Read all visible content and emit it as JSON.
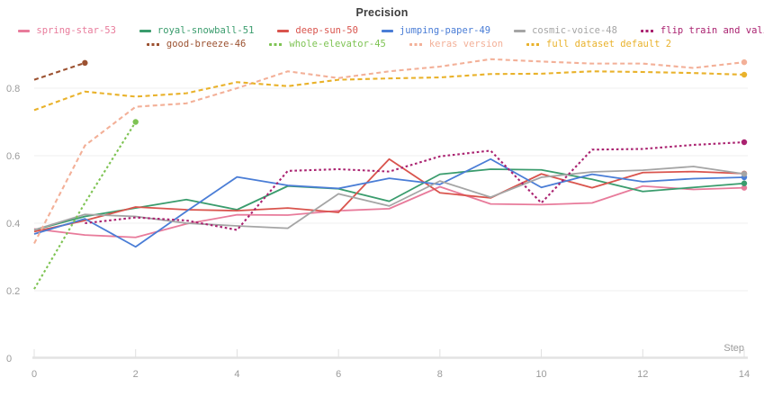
{
  "chart_data": {
    "type": "line",
    "title": "Precision",
    "xlabel": "Step",
    "xlim": [
      0,
      14
    ],
    "ylim": [
      0,
      0.9
    ],
    "x_ticks": [
      0,
      2,
      4,
      6,
      8,
      10,
      12,
      14
    ],
    "x_tick_labels": [
      "0",
      "2",
      "4",
      "6",
      "8",
      "10",
      "12",
      "14"
    ],
    "y_ticks": [
      0,
      0.2,
      0.4,
      0.6,
      0.8
    ],
    "y_tick_labels": [
      "0",
      "0.2",
      "0.4",
      "0.6",
      "0.8"
    ],
    "grid": "horizontal-only",
    "legend_position": "top",
    "axis_color": "#9b9b9b",
    "gridline_color": "#efefef",
    "series": [
      {
        "name": "spring-star-53",
        "color": "#e87b9b",
        "dash": "solid",
        "x": [
          0,
          1,
          2,
          3,
          4,
          5,
          6,
          7,
          8,
          9,
          10,
          11,
          12,
          13,
          14
        ],
        "y": [
          0.383,
          0.365,
          0.358,
          0.398,
          0.425,
          0.424,
          0.437,
          0.443,
          0.508,
          0.457,
          0.455,
          0.46,
          0.51,
          0.5,
          0.505
        ]
      },
      {
        "name": "royal-snowball-51",
        "color": "#3a9c6d",
        "dash": "solid",
        "x": [
          0,
          1,
          2,
          3,
          4,
          5,
          6,
          7,
          8,
          9,
          10,
          11,
          12,
          13,
          14
        ],
        "y": [
          0.38,
          0.42,
          0.445,
          0.47,
          0.44,
          0.51,
          0.502,
          0.465,
          0.545,
          0.56,
          0.558,
          0.53,
          0.494,
          0.506,
          0.518
        ]
      },
      {
        "name": "deep-sun-50",
        "color": "#d9544d",
        "dash": "solid",
        "x": [
          0,
          1,
          2,
          3,
          4,
          5,
          6,
          7,
          8,
          9,
          10,
          11,
          12,
          13,
          14
        ],
        "y": [
          0.375,
          0.408,
          0.448,
          0.44,
          0.437,
          0.445,
          0.432,
          0.59,
          0.49,
          0.475,
          0.546,
          0.505,
          0.55,
          0.553,
          0.547
        ]
      },
      {
        "name": "jumping-paper-49",
        "color": "#4a7dd6",
        "dash": "solid",
        "x": [
          0,
          1,
          2,
          3,
          4,
          5,
          6,
          7,
          8,
          9,
          10,
          11,
          12,
          13,
          14
        ],
        "y": [
          0.368,
          0.413,
          0.33,
          0.435,
          0.537,
          0.512,
          0.503,
          0.533,
          0.515,
          0.59,
          0.506,
          0.545,
          0.523,
          0.532,
          0.536
        ]
      },
      {
        "name": "cosmic-voice-48",
        "color": "#a5a5a5",
        "dash": "solid",
        "x": [
          0,
          1,
          2,
          3,
          4,
          5,
          6,
          7,
          8,
          9,
          10,
          11,
          12,
          13,
          14
        ],
        "y": [
          0.38,
          0.426,
          0.42,
          0.4,
          0.392,
          0.385,
          0.487,
          0.451,
          0.525,
          0.477,
          0.536,
          0.552,
          0.557,
          0.568,
          0.546
        ]
      },
      {
        "name": "flip train and valid sample",
        "color": "#aa2270",
        "dash": "dot",
        "x": [
          1,
          2,
          3,
          4,
          5,
          6,
          7,
          8,
          9,
          10,
          11,
          12,
          13,
          14
        ],
        "y": [
          0.4,
          0.417,
          0.408,
          0.38,
          0.555,
          0.56,
          0.553,
          0.598,
          0.615,
          0.46,
          0.618,
          0.62,
          0.632,
          0.64
        ]
      },
      {
        "name": "good-breeze-46",
        "color": "#9c5231",
        "dash": "dash",
        "x": [
          0,
          1
        ],
        "y": [
          0.825,
          0.875
        ]
      },
      {
        "name": "whole-elevator-45",
        "color": "#7ec353",
        "dash": "dot",
        "x": [
          0,
          1,
          2
        ],
        "y": [
          0.205,
          0.46,
          0.7
        ]
      },
      {
        "name": "keras version",
        "color": "#f3b098",
        "dash": "dash",
        "x": [
          0,
          1,
          2,
          3,
          4,
          5,
          6,
          7,
          8,
          9,
          10,
          11,
          12,
          13,
          14
        ],
        "y": [
          0.34,
          0.63,
          0.745,
          0.755,
          0.8,
          0.85,
          0.83,
          0.85,
          0.864,
          0.886,
          0.879,
          0.873,
          0.873,
          0.86,
          0.877
        ]
      },
      {
        "name": "full dataset default 2",
        "color": "#e9b22b",
        "dash": "dash",
        "x": [
          0,
          1,
          2,
          3,
          4,
          5,
          6,
          7,
          8,
          9,
          10,
          11,
          12,
          13,
          14
        ],
        "y": [
          0.735,
          0.79,
          0.775,
          0.785,
          0.818,
          0.806,
          0.825,
          0.829,
          0.832,
          0.842,
          0.843,
          0.85,
          0.848,
          0.845,
          0.84
        ]
      }
    ]
  }
}
